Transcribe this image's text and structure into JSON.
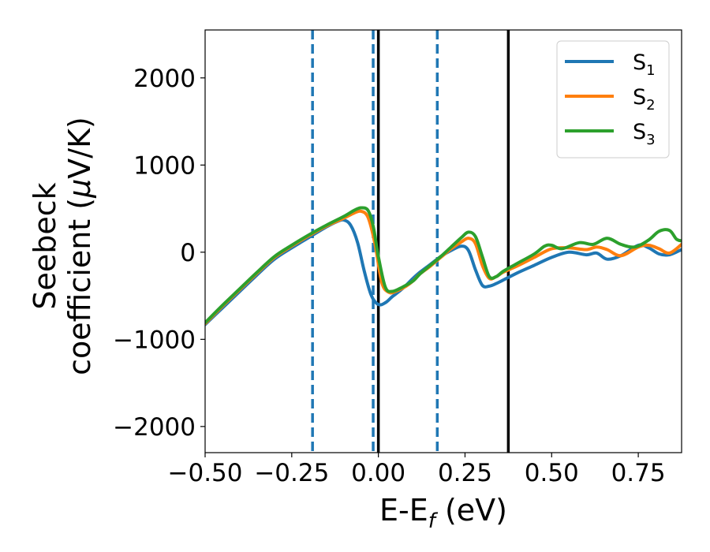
{
  "chart_data": {
    "type": "line",
    "xlabel": "E-E",
    "xlabel_sub": "f",
    "xlabel_unit": " (eV)",
    "ylabel_line1": "Seebeck",
    "ylabel_line2": "coefficient  (",
    "ylabel_mu": "μ",
    "ylabel_unit": "V/K)",
    "xlim": [
      -0.5,
      0.875
    ],
    "ylim": [
      -2300,
      2550
    ],
    "xticks": [
      -0.5,
      -0.25,
      0.0,
      0.25,
      0.5,
      0.75
    ],
    "xtick_labels": [
      "−0.50",
      "−0.25",
      "0.00",
      "0.25",
      "0.50",
      "0.75"
    ],
    "yticks": [
      -2000,
      -1000,
      0,
      1000,
      2000
    ],
    "ytick_labels": [
      "−2000",
      "−1000",
      "0",
      "1000",
      "2000"
    ],
    "grid": false,
    "legend_position": "top-right",
    "colors": {
      "s1": "#1f77b4",
      "s2": "#ff7f0e",
      "s3": "#2ca02c",
      "black": "#000000",
      "dashed": "#1f77b4"
    },
    "vlines_dashed": [
      -0.19,
      -0.015,
      0.17
    ],
    "vlines_solid": [
      0.0,
      0.375
    ],
    "series": [
      {
        "name": "S",
        "sub": "1",
        "color": "#1f77b4",
        "points": [
          [
            -0.5,
            -830
          ],
          [
            -0.45,
            -640
          ],
          [
            -0.4,
            -450
          ],
          [
            -0.35,
            -260
          ],
          [
            -0.3,
            -80
          ],
          [
            -0.25,
            50
          ],
          [
            -0.2,
            170
          ],
          [
            -0.15,
            290
          ],
          [
            -0.12,
            350
          ],
          [
            -0.1,
            370
          ],
          [
            -0.08,
            310
          ],
          [
            -0.06,
            110
          ],
          [
            -0.04,
            -230
          ],
          [
            -0.02,
            -500
          ],
          [
            0.0,
            -600
          ],
          [
            0.02,
            -580
          ],
          [
            0.04,
            -510
          ],
          [
            0.06,
            -450
          ],
          [
            0.08,
            -380
          ],
          [
            0.1,
            -300
          ],
          [
            0.12,
            -230
          ],
          [
            0.15,
            -140
          ],
          [
            0.18,
            -50
          ],
          [
            0.21,
            20
          ],
          [
            0.24,
            70
          ],
          [
            0.26,
            20
          ],
          [
            0.28,
            -200
          ],
          [
            0.3,
            -380
          ],
          [
            0.32,
            -390
          ],
          [
            0.34,
            -360
          ],
          [
            0.36,
            -320
          ],
          [
            0.4,
            -240
          ],
          [
            0.45,
            -150
          ],
          [
            0.5,
            -60
          ],
          [
            0.55,
            0
          ],
          [
            0.6,
            -30
          ],
          [
            0.63,
            -10
          ],
          [
            0.66,
            -80
          ],
          [
            0.7,
            -40
          ],
          [
            0.75,
            80
          ],
          [
            0.78,
            50
          ],
          [
            0.81,
            -20
          ],
          [
            0.84,
            -30
          ],
          [
            0.875,
            30
          ]
        ]
      },
      {
        "name": "S",
        "sub": "2",
        "color": "#ff7f0e",
        "points": [
          [
            -0.5,
            -820
          ],
          [
            -0.45,
            -620
          ],
          [
            -0.4,
            -430
          ],
          [
            -0.35,
            -240
          ],
          [
            -0.3,
            -60
          ],
          [
            -0.25,
            70
          ],
          [
            -0.2,
            190
          ],
          [
            -0.15,
            300
          ],
          [
            -0.1,
            390
          ],
          [
            -0.07,
            450
          ],
          [
            -0.05,
            470
          ],
          [
            -0.03,
            400
          ],
          [
            -0.01,
            100
          ],
          [
            0.01,
            -350
          ],
          [
            0.03,
            -460
          ],
          [
            0.05,
            -450
          ],
          [
            0.08,
            -390
          ],
          [
            0.1,
            -330
          ],
          [
            0.12,
            -250
          ],
          [
            0.15,
            -160
          ],
          [
            0.18,
            -60
          ],
          [
            0.21,
            40
          ],
          [
            0.24,
            120
          ],
          [
            0.26,
            160
          ],
          [
            0.28,
            100
          ],
          [
            0.3,
            -150
          ],
          [
            0.32,
            -300
          ],
          [
            0.34,
            -280
          ],
          [
            0.36,
            -230
          ],
          [
            0.4,
            -160
          ],
          [
            0.45,
            -60
          ],
          [
            0.5,
            40
          ],
          [
            0.55,
            50
          ],
          [
            0.6,
            30
          ],
          [
            0.63,
            60
          ],
          [
            0.66,
            30
          ],
          [
            0.7,
            -40
          ],
          [
            0.75,
            60
          ],
          [
            0.78,
            80
          ],
          [
            0.81,
            40
          ],
          [
            0.84,
            -10
          ],
          [
            0.875,
            90
          ]
        ]
      },
      {
        "name": "S",
        "sub": "3",
        "color": "#2ca02c",
        "points": [
          [
            -0.5,
            -810
          ],
          [
            -0.45,
            -610
          ],
          [
            -0.4,
            -420
          ],
          [
            -0.35,
            -230
          ],
          [
            -0.3,
            -50
          ],
          [
            -0.25,
            80
          ],
          [
            -0.2,
            200
          ],
          [
            -0.15,
            310
          ],
          [
            -0.1,
            410
          ],
          [
            -0.07,
            480
          ],
          [
            -0.05,
            510
          ],
          [
            -0.03,
            480
          ],
          [
            -0.015,
            300
          ],
          [
            0.0,
            -50
          ],
          [
            0.02,
            -400
          ],
          [
            0.04,
            -450
          ],
          [
            0.07,
            -400
          ],
          [
            0.1,
            -330
          ],
          [
            0.12,
            -250
          ],
          [
            0.15,
            -150
          ],
          [
            0.18,
            -50
          ],
          [
            0.21,
            60
          ],
          [
            0.24,
            170
          ],
          [
            0.26,
            230
          ],
          [
            0.28,
            180
          ],
          [
            0.3,
            -50
          ],
          [
            0.32,
            -280
          ],
          [
            0.34,
            -280
          ],
          [
            0.36,
            -220
          ],
          [
            0.4,
            -130
          ],
          [
            0.45,
            -20
          ],
          [
            0.48,
            70
          ],
          [
            0.5,
            80
          ],
          [
            0.53,
            40
          ],
          [
            0.58,
            110
          ],
          [
            0.62,
            90
          ],
          [
            0.66,
            160
          ],
          [
            0.7,
            90
          ],
          [
            0.74,
            60
          ],
          [
            0.78,
            140
          ],
          [
            0.81,
            240
          ],
          [
            0.84,
            250
          ],
          [
            0.86,
            150
          ],
          [
            0.875,
            130
          ]
        ]
      }
    ]
  }
}
